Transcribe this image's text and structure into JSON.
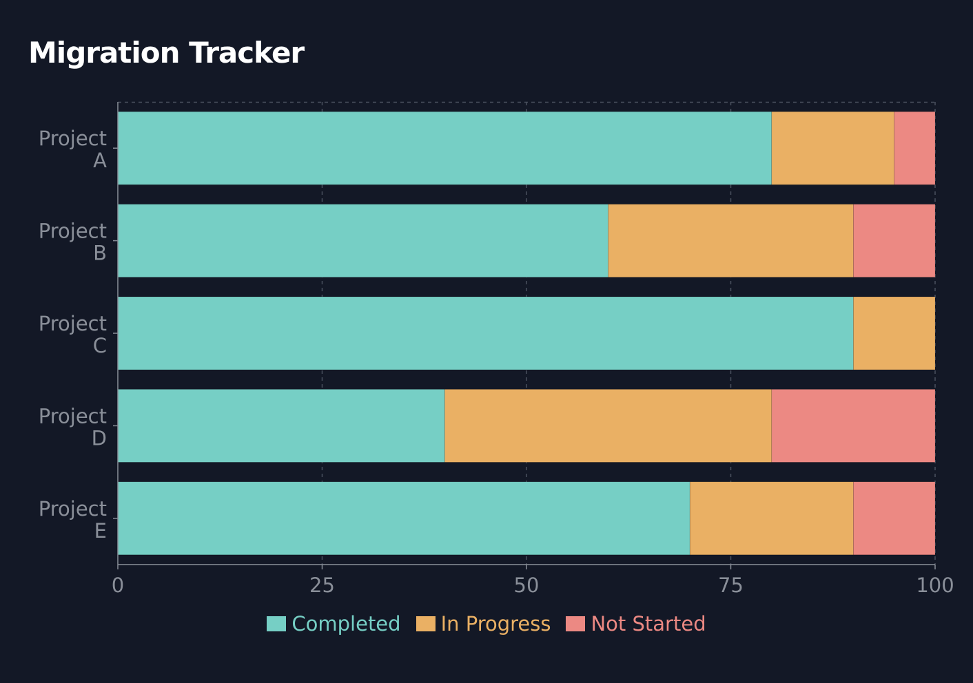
{
  "title": "Migration Tracker",
  "chart_data": {
    "type": "bar",
    "orientation": "horizontal",
    "stacked": true,
    "categories": [
      "Project A",
      "Project B",
      "Project C",
      "Project D",
      "Project E"
    ],
    "category_lines": [
      [
        "Project",
        "A"
      ],
      [
        "Project",
        "B"
      ],
      [
        "Project",
        "C"
      ],
      [
        "Project",
        "D"
      ],
      [
        "Project",
        "E"
      ]
    ],
    "series": [
      {
        "name": "Completed",
        "color": "#76cfc5",
        "values": [
          80,
          60,
          90,
          40,
          70
        ]
      },
      {
        "name": "In Progress",
        "color": "#eab064",
        "values": [
          15,
          30,
          10,
          40,
          20
        ]
      },
      {
        "name": "Not Started",
        "color": "#ec8983",
        "values": [
          5,
          10,
          0,
          20,
          10
        ]
      }
    ],
    "xlim": [
      0,
      100
    ],
    "xticks": [
      "0",
      "25",
      "50",
      "75",
      "100"
    ],
    "xtick_values": [
      0,
      25,
      50,
      75,
      100
    ],
    "grid": true,
    "legend_position": "bottom-center"
  }
}
